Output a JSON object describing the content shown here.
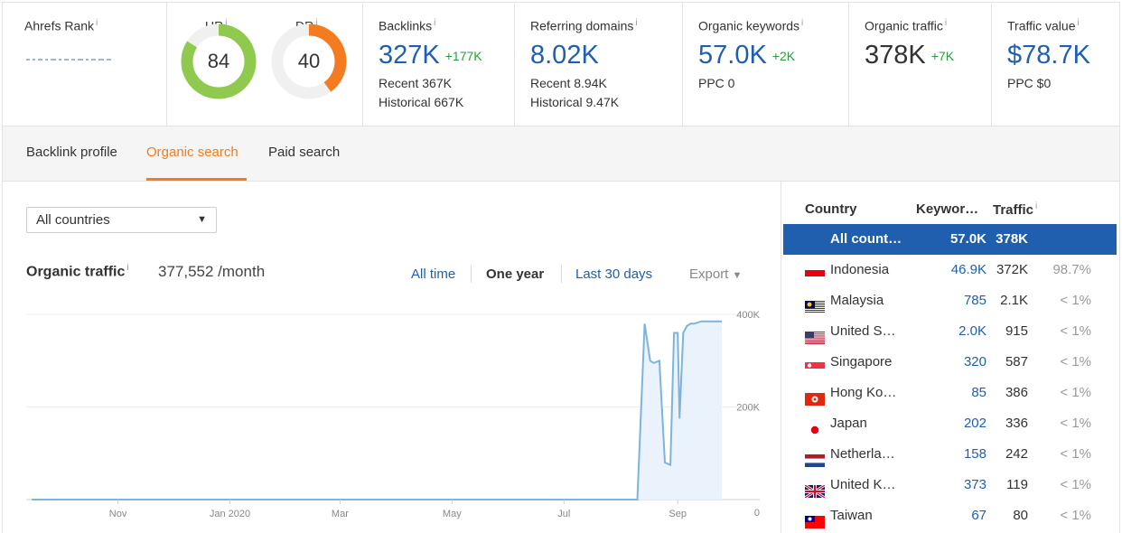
{
  "metrics": {
    "ahrefs_rank": {
      "label": "Ahrefs Rank"
    },
    "ur": {
      "label": "UR",
      "value": "84",
      "fraction": 0.84,
      "color": "#8fc94d"
    },
    "dr": {
      "label": "DR",
      "value": "40",
      "fraction": 0.4,
      "color": "#f47b20"
    },
    "backlinks": {
      "label": "Backlinks",
      "value": "327K",
      "delta": "+177K",
      "recent": "Recent 367K",
      "historical": "Historical 667K"
    },
    "referring_domains": {
      "label": "Referring domains",
      "value": "8.02K",
      "recent": "Recent 8.94K",
      "historical": "Historical 9.47K"
    },
    "organic_keywords": {
      "label": "Organic keywords",
      "value": "57.0K",
      "delta": "+2K",
      "ppc": "PPC 0"
    },
    "organic_traffic": {
      "label": "Organic traffic",
      "value": "378K",
      "delta": "+7K"
    },
    "traffic_value": {
      "label": "Traffic value",
      "value": "$78.7K",
      "ppc": "PPC $0"
    }
  },
  "tabs": [
    "Backlink profile",
    "Organic search",
    "Paid search"
  ],
  "active_tab": "Organic search",
  "filter": {
    "selected": "All countries"
  },
  "organic_traffic": {
    "title": "Organic traffic",
    "value": "377,552 /month",
    "ranges": [
      "All time",
      "One year",
      "Last 30 days"
    ],
    "selected_range": "One year",
    "export_label": "Export"
  },
  "chart_data": {
    "type": "area",
    "x_tick_labels": [
      "Nov",
      "Jan 2020",
      "Mar",
      "May",
      "Jul",
      "Sep"
    ],
    "y_tick_labels": [
      "400K",
      "200K",
      "0"
    ],
    "ylim": [
      0,
      400000
    ],
    "series": [
      {
        "x": [
          "2019-09-15",
          "2019-11-01",
          "2020-01-01",
          "2020-03-01",
          "2020-05-01",
          "2020-07-01",
          "2020-08-10",
          "2020-08-14",
          "2020-08-17",
          "2020-08-19",
          "2020-08-22",
          "2020-08-25",
          "2020-08-28",
          "2020-08-30",
          "2020-09-01",
          "2020-09-02",
          "2020-09-04",
          "2020-09-06",
          "2020-09-08",
          "2020-09-10",
          "2020-09-14",
          "2020-09-20",
          "2020-09-25"
        ],
        "y": [
          0,
          0,
          0,
          0,
          0,
          0,
          0,
          380000,
          300000,
          295000,
          300000,
          80000,
          75000,
          360000,
          360000,
          175000,
          360000,
          375000,
          380000,
          380000,
          385000,
          385000,
          385000
        ]
      }
    ],
    "grid": true
  },
  "country_table": {
    "headers": {
      "country": "Country",
      "keywords": "Keywor…",
      "traffic": "Traffic"
    },
    "rows": [
      {
        "flag": "all",
        "name": "All count…",
        "keywords": "57.0K",
        "traffic": "378K",
        "percent": ""
      },
      {
        "flag": "id",
        "name": "Indonesia",
        "keywords": "46.9K",
        "traffic": "372K",
        "percent": "98.7%"
      },
      {
        "flag": "my",
        "name": "Malaysia",
        "keywords": "785",
        "traffic": "2.1K",
        "percent": "< 1%"
      },
      {
        "flag": "us",
        "name": "United S…",
        "keywords": "2.0K",
        "traffic": "915",
        "percent": "< 1%"
      },
      {
        "flag": "sg",
        "name": "Singapore",
        "keywords": "320",
        "traffic": "587",
        "percent": "< 1%"
      },
      {
        "flag": "hk",
        "name": "Hong Ko…",
        "keywords": "85",
        "traffic": "386",
        "percent": "< 1%"
      },
      {
        "flag": "jp",
        "name": "Japan",
        "keywords": "202",
        "traffic": "336",
        "percent": "< 1%"
      },
      {
        "flag": "nl",
        "name": "Netherla…",
        "keywords": "158",
        "traffic": "242",
        "percent": "< 1%"
      },
      {
        "flag": "gb",
        "name": "United K…",
        "keywords": "373",
        "traffic": "119",
        "percent": "< 1%"
      },
      {
        "flag": "tw",
        "name": "Taiwan",
        "keywords": "67",
        "traffic": "80",
        "percent": "< 1%"
      }
    ]
  },
  "colors": {
    "accent": "#f47b20",
    "link": "#1f5fae",
    "positive": "#2a9d3b",
    "line": "#7eb3de"
  }
}
